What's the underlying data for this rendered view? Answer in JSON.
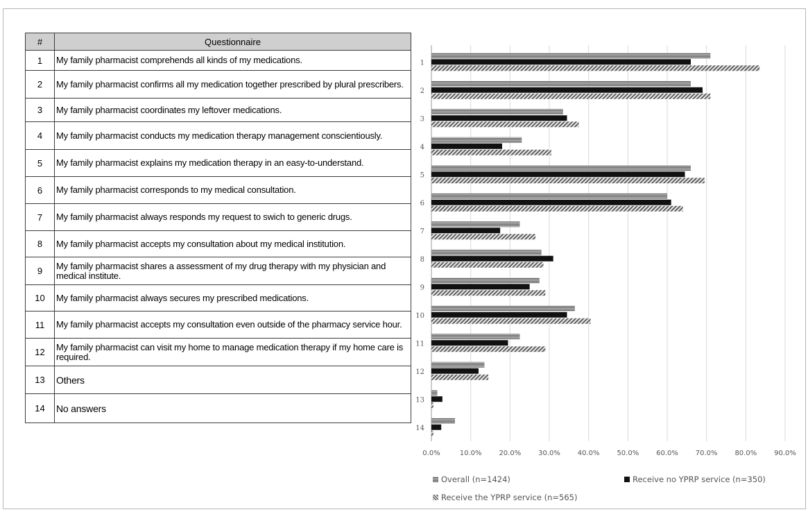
{
  "table": {
    "header_num": "#",
    "header_question": "Questionnaire",
    "rows": [
      {
        "num": "1",
        "text": "My family pharmacist comprehends all kinds of my medications."
      },
      {
        "num": "2",
        "text": "My family pharmacist confirms all my medication together prescribed by plural prescribers."
      },
      {
        "num": "3",
        "text": "My family pharmacist coordinates my leftover medications."
      },
      {
        "num": "4",
        "text": "My family pharmacist conducts my medication therapy management conscientiously."
      },
      {
        "num": "5",
        "text": "My family pharmacist explains my medication therapy in an easy-to-understand."
      },
      {
        "num": "6",
        "text": "My family pharmacist corresponds to my medical consultation."
      },
      {
        "num": "7",
        "text": "My family pharmacist always responds my request to swich to generic drugs."
      },
      {
        "num": "8",
        "text": "My family pharmacist accepts my consultation about my medical institution."
      },
      {
        "num": "9",
        "text": "My family pharmacist shares a assessment of my drug therapy with my physician and medical institute."
      },
      {
        "num": "10",
        "text": "My family pharmacist always secures my prescribed medications."
      },
      {
        "num": "11",
        "text": "My family pharmacist accepts my consultation even outside of the pharmacy service hour."
      },
      {
        "num": "12",
        "text": "My family pharmacist can visit my home to manage medication therapy if my home care is required."
      },
      {
        "num": "13",
        "text": "Others"
      },
      {
        "num": "14",
        "text": "No answers"
      }
    ]
  },
  "chart_data": {
    "type": "bar",
    "orientation": "horizontal",
    "categories": [
      "1",
      "2",
      "3",
      "4",
      "5",
      "6",
      "7",
      "8",
      "9",
      "10",
      "11",
      "12",
      "13",
      "14"
    ],
    "series": [
      {
        "name": "Overall (n=1424)",
        "pattern": "dense-gray",
        "color": "#7a7a7a",
        "values": [
          71.0,
          66.0,
          33.5,
          23.0,
          66.0,
          60.0,
          22.5,
          28.0,
          27.5,
          36.5,
          22.5,
          13.5,
          1.5,
          6.0
        ]
      },
      {
        "name": "Receive no YPRP service (n=350)",
        "pattern": "solid-black",
        "color": "#111111",
        "values": [
          66.0,
          69.0,
          34.5,
          18.0,
          64.5,
          61.0,
          17.5,
          31.0,
          25.0,
          34.5,
          19.5,
          12.0,
          2.8,
          2.5
        ]
      },
      {
        "name": "Receive the YPRP service (n=565)",
        "pattern": "diagonal-hatch",
        "color": "#6e6e6e",
        "values": [
          83.5,
          71.0,
          37.5,
          30.5,
          69.5,
          64.0,
          26.5,
          28.5,
          29.0,
          40.5,
          29.0,
          14.5,
          0.5,
          0.5
        ]
      }
    ],
    "xlim": [
      0,
      90
    ],
    "xticks": [
      "0.0%",
      "10.0%",
      "20.0%",
      "30.0%",
      "40.0%",
      "50.0%",
      "60.0%",
      "70.0%",
      "80.0%",
      "90.0%"
    ],
    "grid": "vertical",
    "legend_position": "bottom"
  }
}
